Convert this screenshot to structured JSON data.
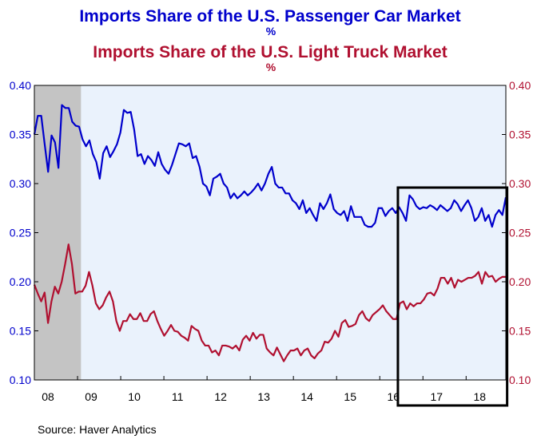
{
  "chart_data": {
    "type": "line",
    "title": "Imports Share of the U.S. Passenger Car Market",
    "subtitle": "Imports Share of the U.S. Light Truck Market",
    "title_unit": "%",
    "subtitle_unit": "%",
    "source": "Source:  Haver Analytics",
    "colors": {
      "car": "#0000cc",
      "truck": "#b01030",
      "plot_bg": "#eaf2fc",
      "recession": "#c4c4c4"
    },
    "x_ticks": [
      "08",
      "09",
      "10",
      "11",
      "12",
      "13",
      "14",
      "15",
      "16",
      "17",
      "18"
    ],
    "y_ticks_left": [
      "0.40",
      "0.35",
      "0.30",
      "0.25",
      "0.20",
      "0.15",
      "0.10"
    ],
    "y_ticks_right": [
      "0.40",
      "0.35",
      "0.30",
      "0.25",
      "0.20",
      "0.15",
      "0.10"
    ],
    "ylim": [
      0.1,
      0.4
    ],
    "xlim": [
      2008.0,
      2018.92
    ],
    "recession": [
      2008.0,
      2009.08
    ],
    "highlight_box": [
      2016.42,
      2018.95
    ],
    "series": [
      {
        "name": "Imports Share of the U.S. Passenger Car Market",
        "color": "#0000cc",
        "values": [
          0.35,
          0.369,
          0.369,
          0.34,
          0.312,
          0.349,
          0.342,
          0.316,
          0.38,
          0.377,
          0.377,
          0.363,
          0.359,
          0.358,
          0.345,
          0.338,
          0.344,
          0.33,
          0.322,
          0.305,
          0.331,
          0.338,
          0.327,
          0.333,
          0.34,
          0.352,
          0.375,
          0.372,
          0.373,
          0.355,
          0.328,
          0.33,
          0.32,
          0.328,
          0.324,
          0.318,
          0.332,
          0.32,
          0.314,
          0.31,
          0.319,
          0.33,
          0.341,
          0.34,
          0.338,
          0.341,
          0.326,
          0.328,
          0.317,
          0.3,
          0.297,
          0.288,
          0.305,
          0.307,
          0.31,
          0.3,
          0.296,
          0.285,
          0.29,
          0.285,
          0.288,
          0.292,
          0.288,
          0.291,
          0.295,
          0.3,
          0.293,
          0.3,
          0.31,
          0.317,
          0.3,
          0.296,
          0.296,
          0.29,
          0.29,
          0.283,
          0.28,
          0.274,
          0.283,
          0.27,
          0.275,
          0.268,
          0.262,
          0.28,
          0.274,
          0.28,
          0.289,
          0.274,
          0.27,
          0.268,
          0.272,
          0.262,
          0.277,
          0.266,
          0.266,
          0.266,
          0.258,
          0.256,
          0.256,
          0.26,
          0.275,
          0.275,
          0.267,
          0.272,
          0.275,
          0.27,
          0.276,
          0.27,
          0.262,
          0.288,
          0.284,
          0.277,
          0.274,
          0.276,
          0.275,
          0.278,
          0.276,
          0.273,
          0.278,
          0.275,
          0.272,
          0.275,
          0.283,
          0.279,
          0.272,
          0.278,
          0.283,
          0.275,
          0.262,
          0.266,
          0.275,
          0.262,
          0.268,
          0.256,
          0.268,
          0.273,
          0.268,
          0.286
        ]
      },
      {
        "name": "Imports Share of the U.S. Light Truck Market",
        "color": "#b01030",
        "values": [
          0.197,
          0.188,
          0.18,
          0.189,
          0.158,
          0.18,
          0.195,
          0.188,
          0.2,
          0.218,
          0.238,
          0.218,
          0.188,
          0.19,
          0.19,
          0.196,
          0.21,
          0.196,
          0.178,
          0.172,
          0.176,
          0.184,
          0.19,
          0.18,
          0.16,
          0.15,
          0.16,
          0.16,
          0.167,
          0.162,
          0.162,
          0.168,
          0.16,
          0.16,
          0.167,
          0.17,
          0.16,
          0.152,
          0.145,
          0.15,
          0.156,
          0.15,
          0.149,
          0.145,
          0.143,
          0.14,
          0.155,
          0.152,
          0.15,
          0.14,
          0.135,
          0.135,
          0.128,
          0.13,
          0.125,
          0.135,
          0.135,
          0.134,
          0.132,
          0.135,
          0.13,
          0.141,
          0.145,
          0.14,
          0.148,
          0.142,
          0.146,
          0.146,
          0.132,
          0.128,
          0.125,
          0.133,
          0.126,
          0.119,
          0.125,
          0.13,
          0.13,
          0.132,
          0.125,
          0.13,
          0.132,
          0.125,
          0.122,
          0.127,
          0.13,
          0.139,
          0.138,
          0.142,
          0.15,
          0.144,
          0.158,
          0.161,
          0.154,
          0.155,
          0.157,
          0.166,
          0.17,
          0.163,
          0.16,
          0.166,
          0.169,
          0.172,
          0.176,
          0.17,
          0.166,
          0.162,
          0.162,
          0.178,
          0.18,
          0.172,
          0.178,
          0.175,
          0.178,
          0.178,
          0.182,
          0.188,
          0.189,
          0.186,
          0.193,
          0.204,
          0.204,
          0.198,
          0.204,
          0.194,
          0.202,
          0.2,
          0.202,
          0.204,
          0.204,
          0.206,
          0.21,
          0.198,
          0.21,
          0.205,
          0.206,
          0.2,
          0.203,
          0.205,
          0.205
        ]
      }
    ]
  }
}
